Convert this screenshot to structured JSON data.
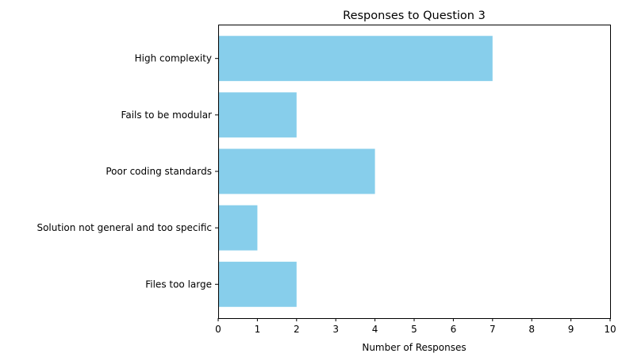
{
  "chart_data": {
    "type": "bar",
    "orientation": "horizontal",
    "title": "Responses to Question 3",
    "xlabel": "Number of Responses",
    "ylabel": "",
    "categories": [
      "High complexity",
      "Fails to be modular",
      "Poor coding standards",
      "Solution not general and too specific",
      "Files too large"
    ],
    "values": [
      7,
      2,
      4,
      1,
      2
    ],
    "xlim": [
      0,
      10
    ],
    "x_ticks": [
      "0",
      "1",
      "2",
      "3",
      "4",
      "5",
      "6",
      "7",
      "8",
      "9",
      "10"
    ],
    "grid": false,
    "bar_color": "#87ceeb"
  }
}
